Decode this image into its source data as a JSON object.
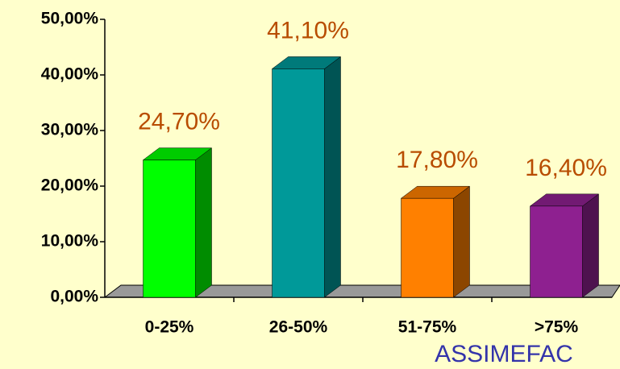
{
  "chart_data": {
    "type": "bar3d",
    "categories": [
      "0-25%",
      "26-50%",
      "51-75%",
      ">75%"
    ],
    "values": [
      24.7,
      41.1,
      17.8,
      16.4
    ],
    "value_labels": [
      "24,70%",
      "41,10%",
      "17,80%",
      "16,40%"
    ],
    "colors": [
      "#00ff00",
      "#009999",
      "#ff8000",
      "#8e2090"
    ],
    "ylim": [
      0,
      50
    ],
    "yticks": [
      {
        "value": 0,
        "label": "0,00%"
      },
      {
        "value": 10,
        "label": "10,00%"
      },
      {
        "value": 20,
        "label": "20,00%"
      },
      {
        "value": 30,
        "label": "30,00%"
      },
      {
        "value": 40,
        "label": "40,00%"
      },
      {
        "value": 50,
        "label": "50,00%"
      }
    ],
    "annotation": "ASSIMEFAC"
  }
}
